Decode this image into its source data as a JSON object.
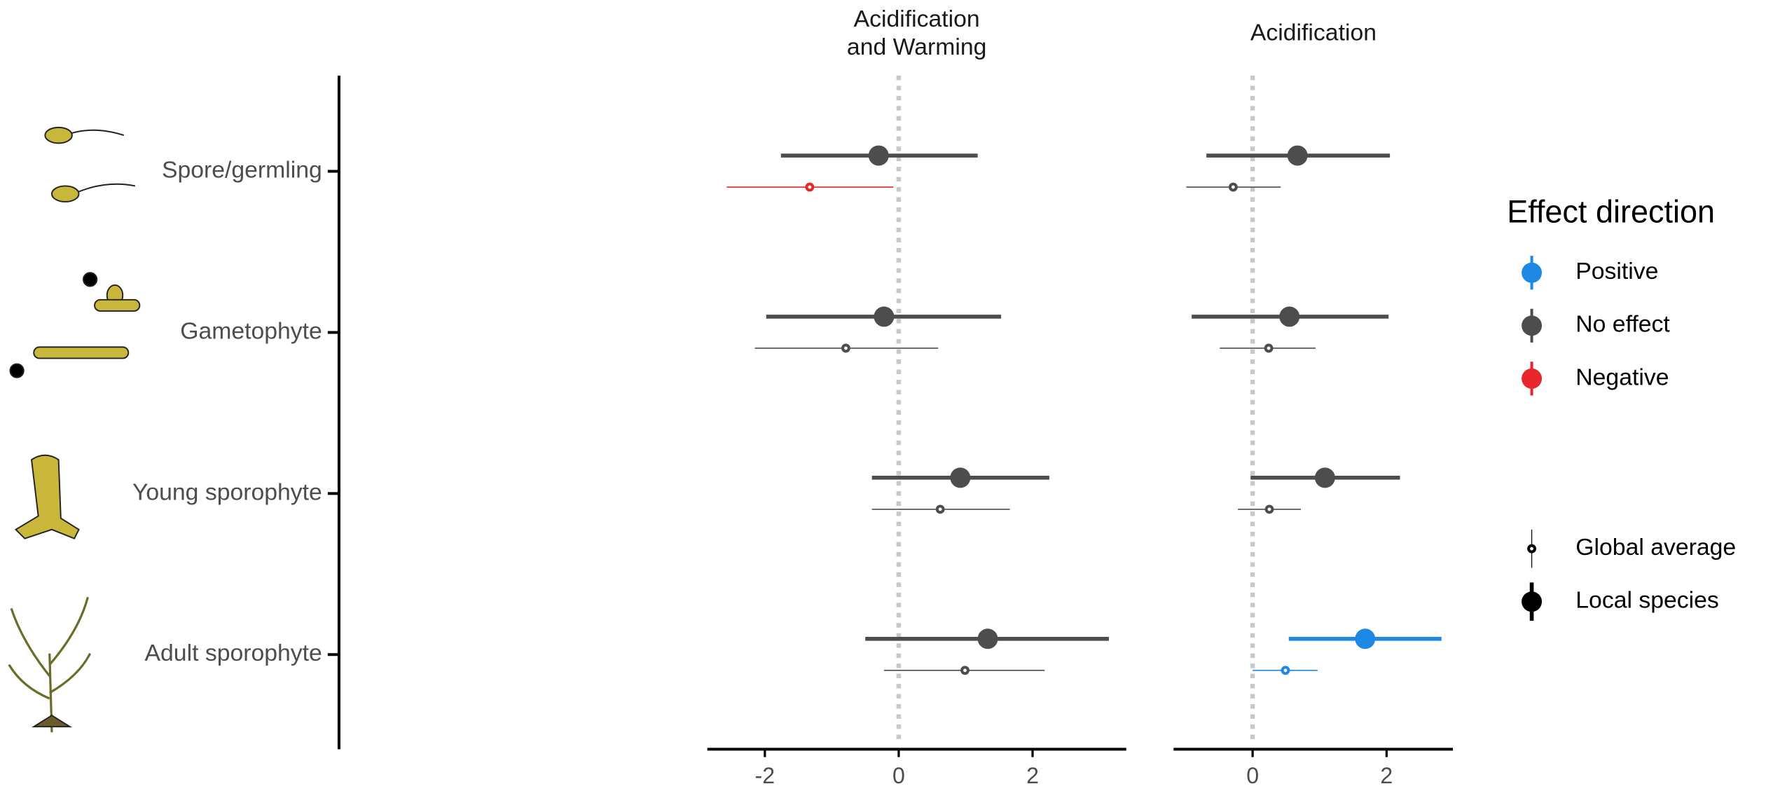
{
  "chart_data": {
    "type": "forest",
    "categories": [
      "Spore/germling",
      "Gametophyte",
      "Young sporophyte",
      "Adult sporophyte"
    ],
    "panels": [
      {
        "title": [
          "Acidification",
          "and Warming"
        ],
        "xlim": [
          -2.86,
          3.4
        ],
        "xticks": [
          -2,
          0,
          2
        ]
      },
      {
        "title": [
          "Acidification"
        ],
        "xlim": [
          -1.18,
          2.99
        ],
        "xticks": [
          0,
          2
        ]
      }
    ],
    "series": [
      {
        "name": "Global average",
        "panels": [
          {
            "values": [
              -1.33,
              -0.79,
              0.62,
              0.99
            ],
            "lower": [
              -2.57,
              -2.15,
              -0.4,
              -0.22
            ],
            "upper": [
              -0.08,
              0.59,
              1.66,
              2.18
            ],
            "colors": [
              "#e8262b",
              "#4d4d4d",
              "#4d4d4d",
              "#4d4d4d"
            ]
          },
          {
            "values": [
              -0.29,
              0.24,
              0.25,
              0.49
            ],
            "lower": [
              -0.99,
              -0.49,
              -0.22,
              0
            ],
            "upper": [
              0.42,
              0.94,
              0.72,
              0.97
            ],
            "colors": [
              "#4d4d4d",
              "#4d4d4d",
              "#4d4d4d",
              "#1e88e5"
            ]
          }
        ]
      },
      {
        "name": "Local species",
        "panels": [
          {
            "values": [
              -0.3,
              -0.22,
              0.92,
              1.33
            ],
            "lower": [
              -1.76,
              -1.98,
              -0.4,
              -0.5
            ],
            "upper": [
              1.18,
              1.53,
              2.25,
              3.14
            ],
            "colors": [
              "#4d4d4d",
              "#4d4d4d",
              "#4d4d4d",
              "#4d4d4d"
            ]
          },
          {
            "values": [
              0.67,
              0.55,
              1.08,
              1.68
            ],
            "lower": [
              -0.69,
              -0.91,
              -0.03,
              0.54
            ],
            "upper": [
              2.05,
              2.03,
              2.2,
              2.82
            ],
            "colors": [
              "#4d4d4d",
              "#4d4d4d",
              "#4d4d4d",
              "#1e88e5"
            ]
          }
        ]
      }
    ],
    "legend": {
      "title": "Effect direction",
      "entries": [
        {
          "name": "Positive",
          "color": "#1e88e5"
        },
        {
          "name": "No effect",
          "color": "#4d4d4d"
        },
        {
          "name": "Negative",
          "color": "#e8262b"
        }
      ]
    }
  }
}
